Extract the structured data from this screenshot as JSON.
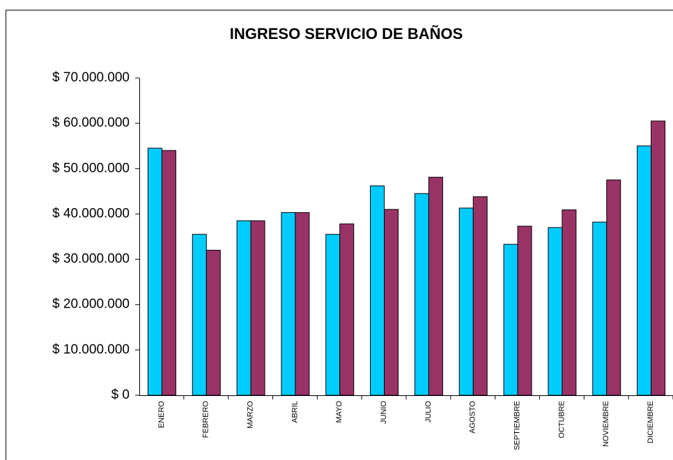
{
  "chart_data": {
    "type": "bar",
    "title": "INGRESO SERVICIO DE BAÑOS",
    "categories": [
      "ENERO",
      "FEBRERO",
      "MARZO",
      "ABRIL",
      "MAYO",
      "JUNIO",
      "JULIO",
      "AGOSTO",
      "SEPTIEMBRE",
      "OCTUBRE",
      "NOVIEMBRE",
      "DICIEMBRE"
    ],
    "series": [
      {
        "color": "#00ccff",
        "values": [
          54500000,
          35500000,
          38500000,
          40300000,
          35500000,
          46200000,
          44500000,
          41300000,
          33300000,
          37000000,
          38200000,
          55000000
        ]
      },
      {
        "color": "#993366",
        "values": [
          54000000,
          32000000,
          38500000,
          40300000,
          37800000,
          41000000,
          48100000,
          43800000,
          37300000,
          40900000,
          47500000,
          60500000
        ]
      }
    ],
    "ylim": [
      0,
      70000000
    ],
    "yticks": [
      {
        "value": 0,
        "label": "$ 0"
      },
      {
        "value": 10000000,
        "label": "$ 10.000.000"
      },
      {
        "value": 20000000,
        "label": "$ 20.000.000"
      },
      {
        "value": 30000000,
        "label": "$ 30.000.000"
      },
      {
        "value": 40000000,
        "label": "$ 40.000.000"
      },
      {
        "value": 50000000,
        "label": "$ 50.000.000"
      },
      {
        "value": 60000000,
        "label": "$ 60.000.000"
      },
      {
        "value": 70000000,
        "label": "$ 70.000.000"
      }
    ],
    "grid": false
  }
}
